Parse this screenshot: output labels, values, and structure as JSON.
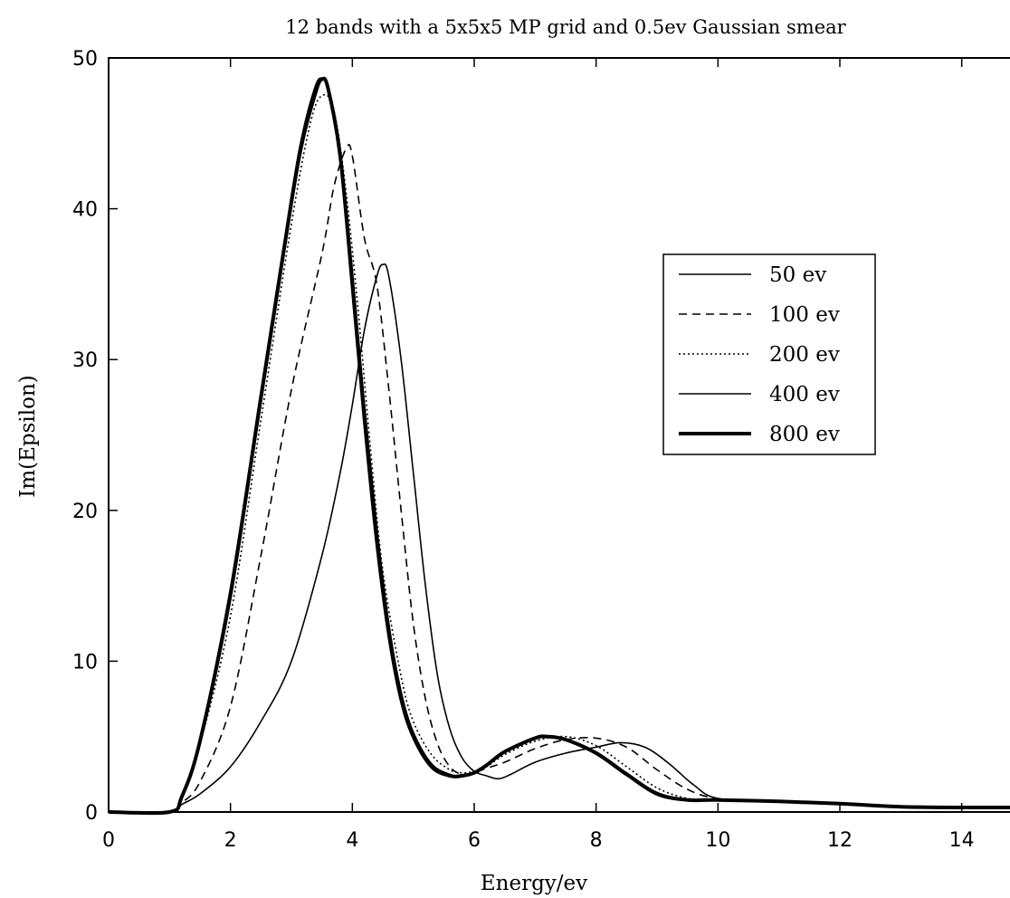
{
  "chart_data": {
    "type": "line",
    "title": "12 bands with a 5x5x5 MP grid and 0.5ev Gaussian smear",
    "xlabel": "Energy/ev",
    "ylabel": "Im(Epsilon)",
    "xlim": [
      0,
      15
    ],
    "ylim": [
      0,
      50
    ],
    "xticks": [
      0,
      2,
      4,
      6,
      8,
      10,
      12,
      14
    ],
    "yticks": [
      0,
      10,
      20,
      30,
      40,
      50
    ],
    "grid": false,
    "legend_position": "right",
    "series": [
      {
        "name": "50 ev",
        "style": "solid-thin",
        "x": [
          0,
          1.0,
          1.2,
          1.5,
          2.0,
          2.5,
          3.0,
          3.5,
          3.8,
          4.0,
          4.2,
          4.4,
          4.5,
          4.6,
          4.8,
          5.0,
          5.2,
          5.4,
          5.6,
          5.8,
          6.0,
          6.2,
          6.4,
          6.6,
          7.0,
          7.5,
          8.0,
          8.4,
          8.8,
          9.2,
          9.6,
          10.0,
          11.0,
          12.0,
          13.0,
          14.0,
          15.0
        ],
        "y": [
          0,
          0,
          0.5,
          1.2,
          3.0,
          6.0,
          10.0,
          17.0,
          22.5,
          27.0,
          32.0,
          35.5,
          36.3,
          35.5,
          30.0,
          22.5,
          15.0,
          9.0,
          5.5,
          3.6,
          2.7,
          2.4,
          2.2,
          2.5,
          3.3,
          3.9,
          4.3,
          4.6,
          4.3,
          3.2,
          1.8,
          0.9,
          0.7,
          0.6,
          0.35,
          0.3,
          0.3
        ]
      },
      {
        "name": "100 ev",
        "style": "dashed",
        "x": [
          0,
          1.0,
          1.2,
          1.5,
          2.0,
          2.5,
          3.0,
          3.5,
          3.7,
          3.9,
          4.0,
          4.2,
          4.4,
          4.6,
          4.8,
          5.0,
          5.2,
          5.4,
          5.6,
          5.8,
          6.0,
          6.2,
          6.5,
          7.0,
          7.5,
          8.0,
          8.5,
          9.0,
          9.5,
          10.0,
          11.0,
          12.0,
          13.0,
          14.0,
          15.0
        ],
        "y": [
          0,
          0,
          0.6,
          2.0,
          7.0,
          17.0,
          28.0,
          37.0,
          41.5,
          44.0,
          43.5,
          38.0,
          35.0,
          28.0,
          20.0,
          12.5,
          7.5,
          4.5,
          3.0,
          2.5,
          2.6,
          2.9,
          3.3,
          4.2,
          4.8,
          4.9,
          4.3,
          2.8,
          1.5,
          0.9,
          0.7,
          0.6,
          0.35,
          0.3,
          0.3
        ]
      },
      {
        "name": "200 ev",
        "style": "dotted",
        "x": [
          0,
          1.0,
          1.2,
          1.5,
          2.0,
          2.5,
          3.0,
          3.3,
          3.5,
          3.7,
          3.9,
          4.1,
          4.3,
          4.5,
          4.8,
          5.0,
          5.3,
          5.6,
          5.8,
          6.0,
          6.2,
          6.5,
          7.0,
          7.5,
          8.0,
          8.5,
          9.0,
          9.5,
          10.0,
          11.0,
          12.0,
          13.0,
          14.0,
          15.0
        ],
        "y": [
          0,
          0,
          1.0,
          4.5,
          13.0,
          26.0,
          39.0,
          45.5,
          47.5,
          46.5,
          41.0,
          33.0,
          24.0,
          16.0,
          9.0,
          6.0,
          3.8,
          2.8,
          2.6,
          2.7,
          3.0,
          3.8,
          4.7,
          5.0,
          4.4,
          3.0,
          1.6,
          0.9,
          0.8,
          0.7,
          0.6,
          0.35,
          0.3,
          0.3
        ]
      },
      {
        "name": "400 ev",
        "style": "solid-thin",
        "x": [
          0,
          1.0,
          1.2,
          1.5,
          2.0,
          2.5,
          3.0,
          3.2,
          3.4,
          3.5,
          3.6,
          3.8,
          4.0,
          4.2,
          4.4,
          4.6,
          4.8,
          5.0,
          5.3,
          5.6,
          5.8,
          6.0,
          6.2,
          6.5,
          7.0,
          7.2,
          7.5,
          8.0,
          8.5,
          9.0,
          9.5,
          10.0,
          11.0,
          12.0,
          13.0,
          14.0,
          15.0
        ],
        "y": [
          0,
          0,
          1.0,
          4.5,
          14.0,
          27.0,
          40.0,
          44.5,
          47.5,
          48.5,
          48.0,
          44.0,
          36.0,
          27.0,
          19.0,
          12.5,
          8.0,
          5.3,
          3.2,
          2.5,
          2.4,
          2.6,
          3.1,
          4.0,
          4.9,
          5.0,
          4.8,
          4.0,
          2.6,
          1.3,
          0.85,
          0.8,
          0.7,
          0.55,
          0.35,
          0.3,
          0.3
        ]
      },
      {
        "name": "800 ev",
        "style": "solid-thick",
        "x": [
          0,
          1.0,
          1.2,
          1.5,
          2.0,
          2.5,
          3.0,
          3.2,
          3.4,
          3.5,
          3.6,
          3.8,
          4.0,
          4.2,
          4.4,
          4.6,
          4.8,
          5.0,
          5.3,
          5.6,
          5.8,
          6.0,
          6.2,
          6.5,
          7.0,
          7.2,
          7.5,
          8.0,
          8.5,
          9.0,
          9.5,
          10.0,
          11.0,
          12.0,
          13.0,
          14.0,
          15.0
        ],
        "y": [
          0,
          0,
          1.0,
          4.7,
          14.5,
          27.5,
          40.5,
          45.0,
          48.0,
          48.6,
          48.0,
          43.5,
          35.0,
          26.0,
          18.0,
          11.8,
          7.5,
          5.0,
          3.0,
          2.4,
          2.4,
          2.6,
          3.1,
          4.0,
          4.9,
          5.0,
          4.8,
          3.9,
          2.5,
          1.2,
          0.8,
          0.8,
          0.7,
          0.55,
          0.35,
          0.3,
          0.3
        ]
      }
    ]
  }
}
